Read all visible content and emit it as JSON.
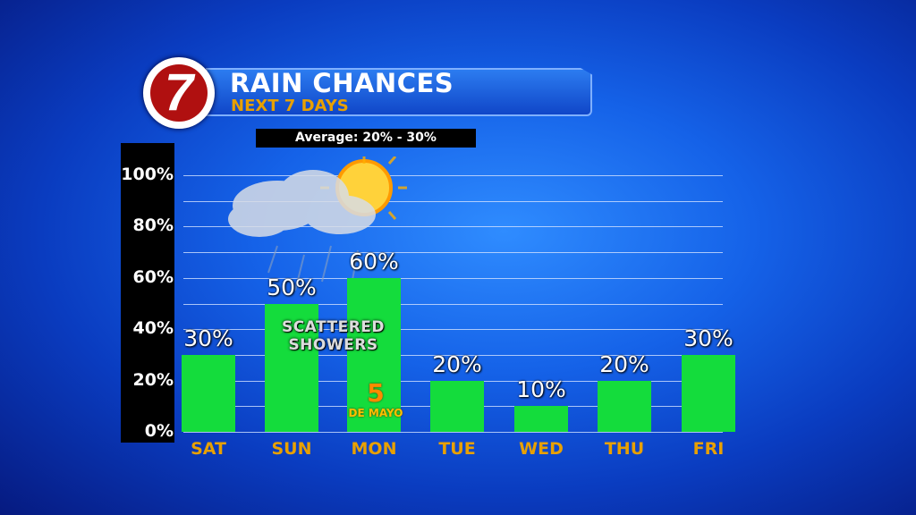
{
  "header": {
    "logo": "7",
    "title": "RAIN CHANCES",
    "subtitle": "NEXT 7 DAYS",
    "average": "Average: 20% - 30%"
  },
  "colors": {
    "bar": "#14dc3c",
    "day_label": "#e8a000",
    "background": "#1562e8"
  },
  "annotations": {
    "weather": "SCATTERED SHOWERS",
    "weather_line1": "SCATTERED",
    "weather_line2": "SHOWERS",
    "holiday_number": "5",
    "holiday_text": "DE MAYO",
    "weather_icon": "sun-cloud-rain-icon"
  },
  "chart_data": {
    "type": "bar",
    "title": "RAIN CHANCES",
    "subtitle": "NEXT 7 DAYS",
    "categories": [
      "SAT",
      "SUN",
      "MON",
      "TUE",
      "WED",
      "THU",
      "FRI"
    ],
    "values": [
      30,
      50,
      60,
      20,
      10,
      20,
      30
    ],
    "value_labels": [
      "30%",
      "50%",
      "60%",
      "20%",
      "10%",
      "20%",
      "30%"
    ],
    "ylim": [
      0,
      100
    ],
    "yticks": [
      "0%",
      "20%",
      "40%",
      "60%",
      "80%",
      "100%"
    ],
    "grid": true,
    "ylabel": "",
    "xlabel": ""
  }
}
